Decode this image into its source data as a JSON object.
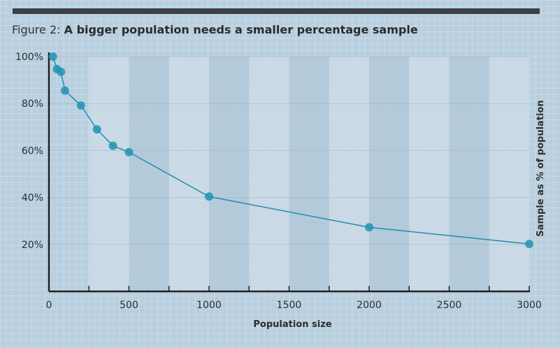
{
  "figure_label": "Figure 2:",
  "chart_data": {
    "type": "line",
    "title": "A bigger population needs a smaller percentage sample",
    "xlabel": "Population size",
    "ylabel": "Sample as % of population",
    "xlim": [
      0,
      3000
    ],
    "ylim": [
      0,
      100
    ],
    "xticks": [
      0,
      500,
      1000,
      1500,
      2000,
      2500,
      3000
    ],
    "yticks": [
      "20%",
      "40%",
      "60%",
      "80%",
      "100%"
    ],
    "ytick_values": [
      20,
      40,
      60,
      80,
      100
    ],
    "grid": false,
    "x": [
      25,
      50,
      75,
      100,
      200,
      300,
      400,
      500,
      1000,
      2000,
      3000
    ],
    "values": [
      100,
      94.7,
      93.5,
      85.5,
      79.2,
      69,
      62,
      59.3,
      40.4,
      27.3,
      20.2
    ],
    "colors": {
      "line": "#1f8fad",
      "marker": "#1f94b4",
      "axis": "#1e2024",
      "band_light": "#cddbe6",
      "band_dark": "#b2c8d9"
    }
  }
}
